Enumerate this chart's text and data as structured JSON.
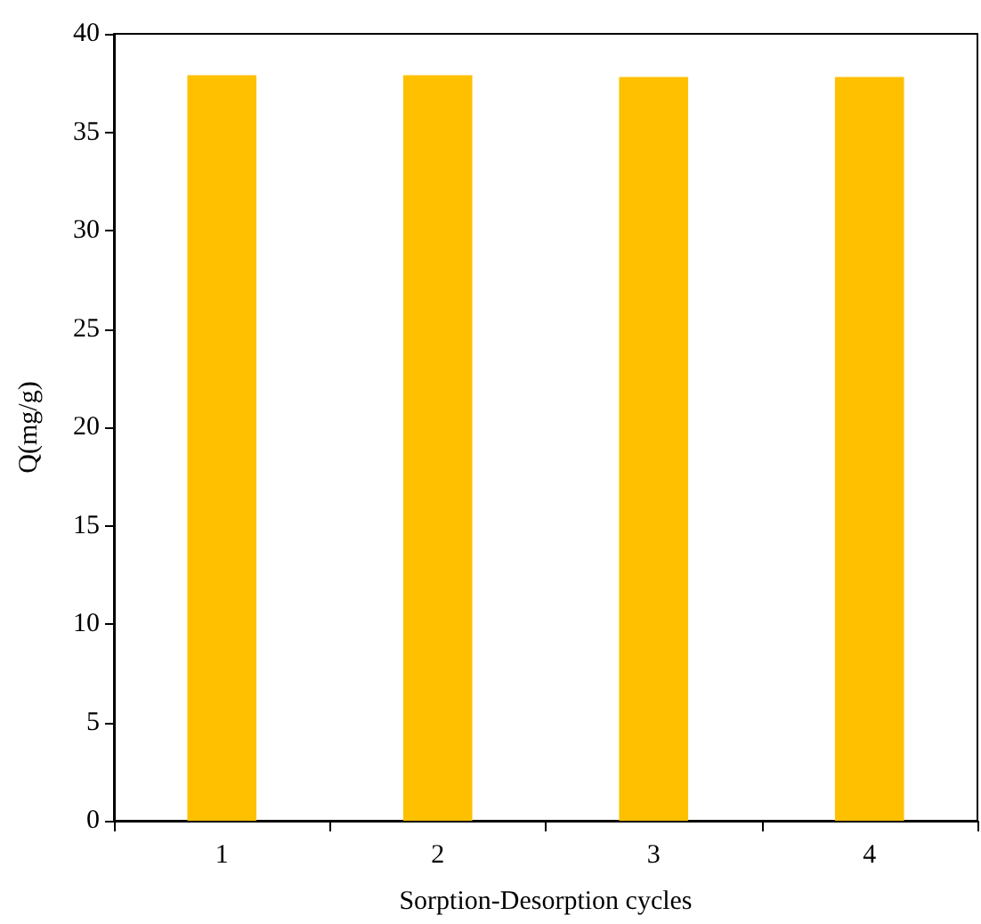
{
  "chart_data": {
    "type": "bar",
    "xlabel": "Sorption-Desorption cycles",
    "ylabel": "Q(mg/g)",
    "categories": [
      "1",
      "2",
      "3",
      "4"
    ],
    "values": [
      37.9,
      37.9,
      37.8,
      37.8
    ],
    "color": "#ffc000",
    "ylim": [
      0,
      40
    ],
    "yticks": [
      0,
      5,
      10,
      15,
      20,
      25,
      30,
      35,
      40
    ],
    "grid": false
  }
}
